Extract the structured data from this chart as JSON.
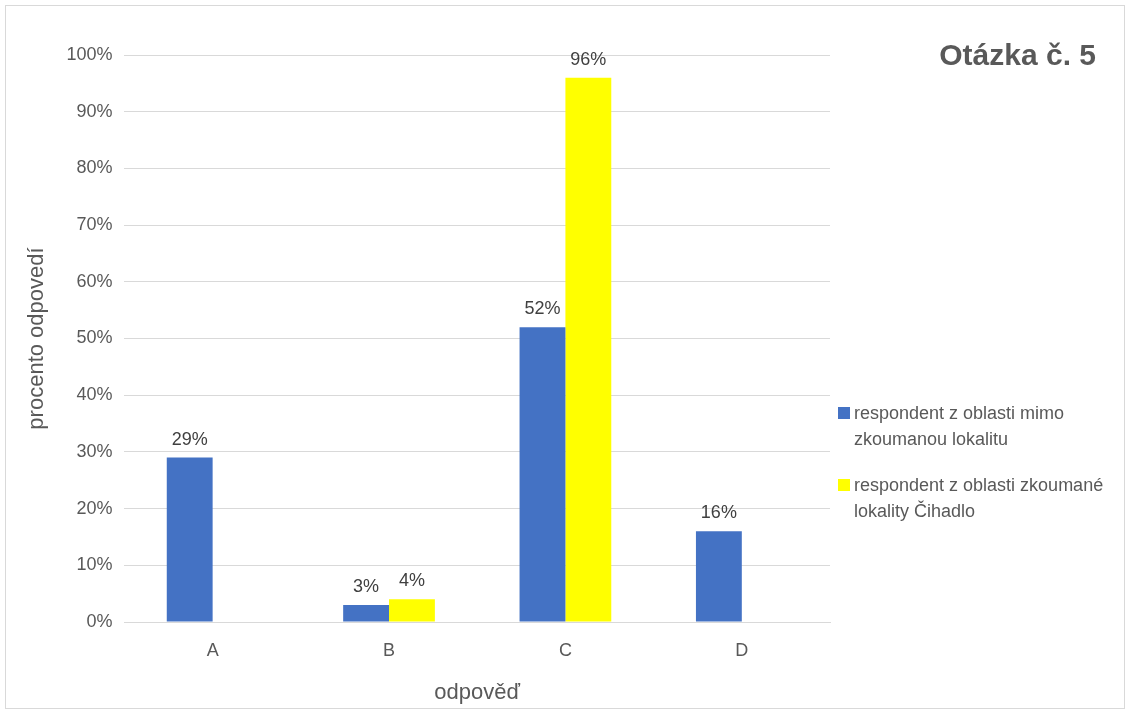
{
  "chart_data": {
    "type": "bar",
    "title": "Otázka č. 5",
    "xlabel": "odpověď",
    "ylabel": "procento odpovedí",
    "categories": [
      "A",
      "B",
      "C",
      "D"
    ],
    "series": [
      {
        "name": "respondent z oblasti mimo zkoumanou lokalitu",
        "color": "#4472c4",
        "values": [
          29,
          3,
          52,
          16
        ],
        "value_labels": [
          "29%",
          "3%",
          "52%",
          "16%"
        ]
      },
      {
        "name": "respondent z oblasti zkoumané lokality Čihadlo",
        "color": "#ffff00",
        "values": [
          0,
          4,
          96,
          0
        ],
        "value_labels": [
          null,
          "4%",
          "96%",
          null
        ]
      }
    ],
    "ylim": [
      0,
      100
    ],
    "yticks": [
      {
        "value": 0,
        "label": "0%"
      },
      {
        "value": 10,
        "label": "10%"
      },
      {
        "value": 20,
        "label": "20%"
      },
      {
        "value": 30,
        "label": "30%"
      },
      {
        "value": 40,
        "label": "40%"
      },
      {
        "value": 50,
        "label": "50%"
      },
      {
        "value": 60,
        "label": "60%"
      },
      {
        "value": 70,
        "label": "70%"
      },
      {
        "value": 80,
        "label": "80%"
      },
      {
        "value": 90,
        "label": "90%"
      },
      {
        "value": 100,
        "label": "100%"
      }
    ],
    "grid": "y",
    "legend": "right"
  }
}
